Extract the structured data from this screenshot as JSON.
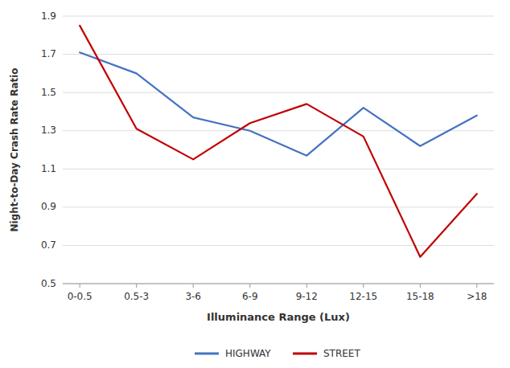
{
  "chart_data": {
    "type": "line",
    "categories": [
      "0-0.5",
      "0.5-3",
      "3-6",
      "6-9",
      "9-12",
      "12-15",
      "15-18",
      ">18"
    ],
    "series": [
      {
        "name": "HIGHWAY",
        "color": "#4472C4",
        "values": [
          1.71,
          1.6,
          1.37,
          1.3,
          1.17,
          1.42,
          1.22,
          1.38
        ]
      },
      {
        "name": "STREET",
        "color": "#C00000",
        "values": [
          1.85,
          1.31,
          1.15,
          1.34,
          1.44,
          1.27,
          0.64,
          0.97
        ]
      }
    ],
    "xlabel": "Illuminance Range (Lux)",
    "ylabel": "Night-to-Day Crash Rate Ratio",
    "ylim": [
      0.5,
      1.9
    ],
    "yticks": [
      0.5,
      0.7,
      0.9,
      1.1,
      1.3,
      1.5,
      1.7,
      1.9
    ],
    "grid": true,
    "legend": "bottom"
  }
}
